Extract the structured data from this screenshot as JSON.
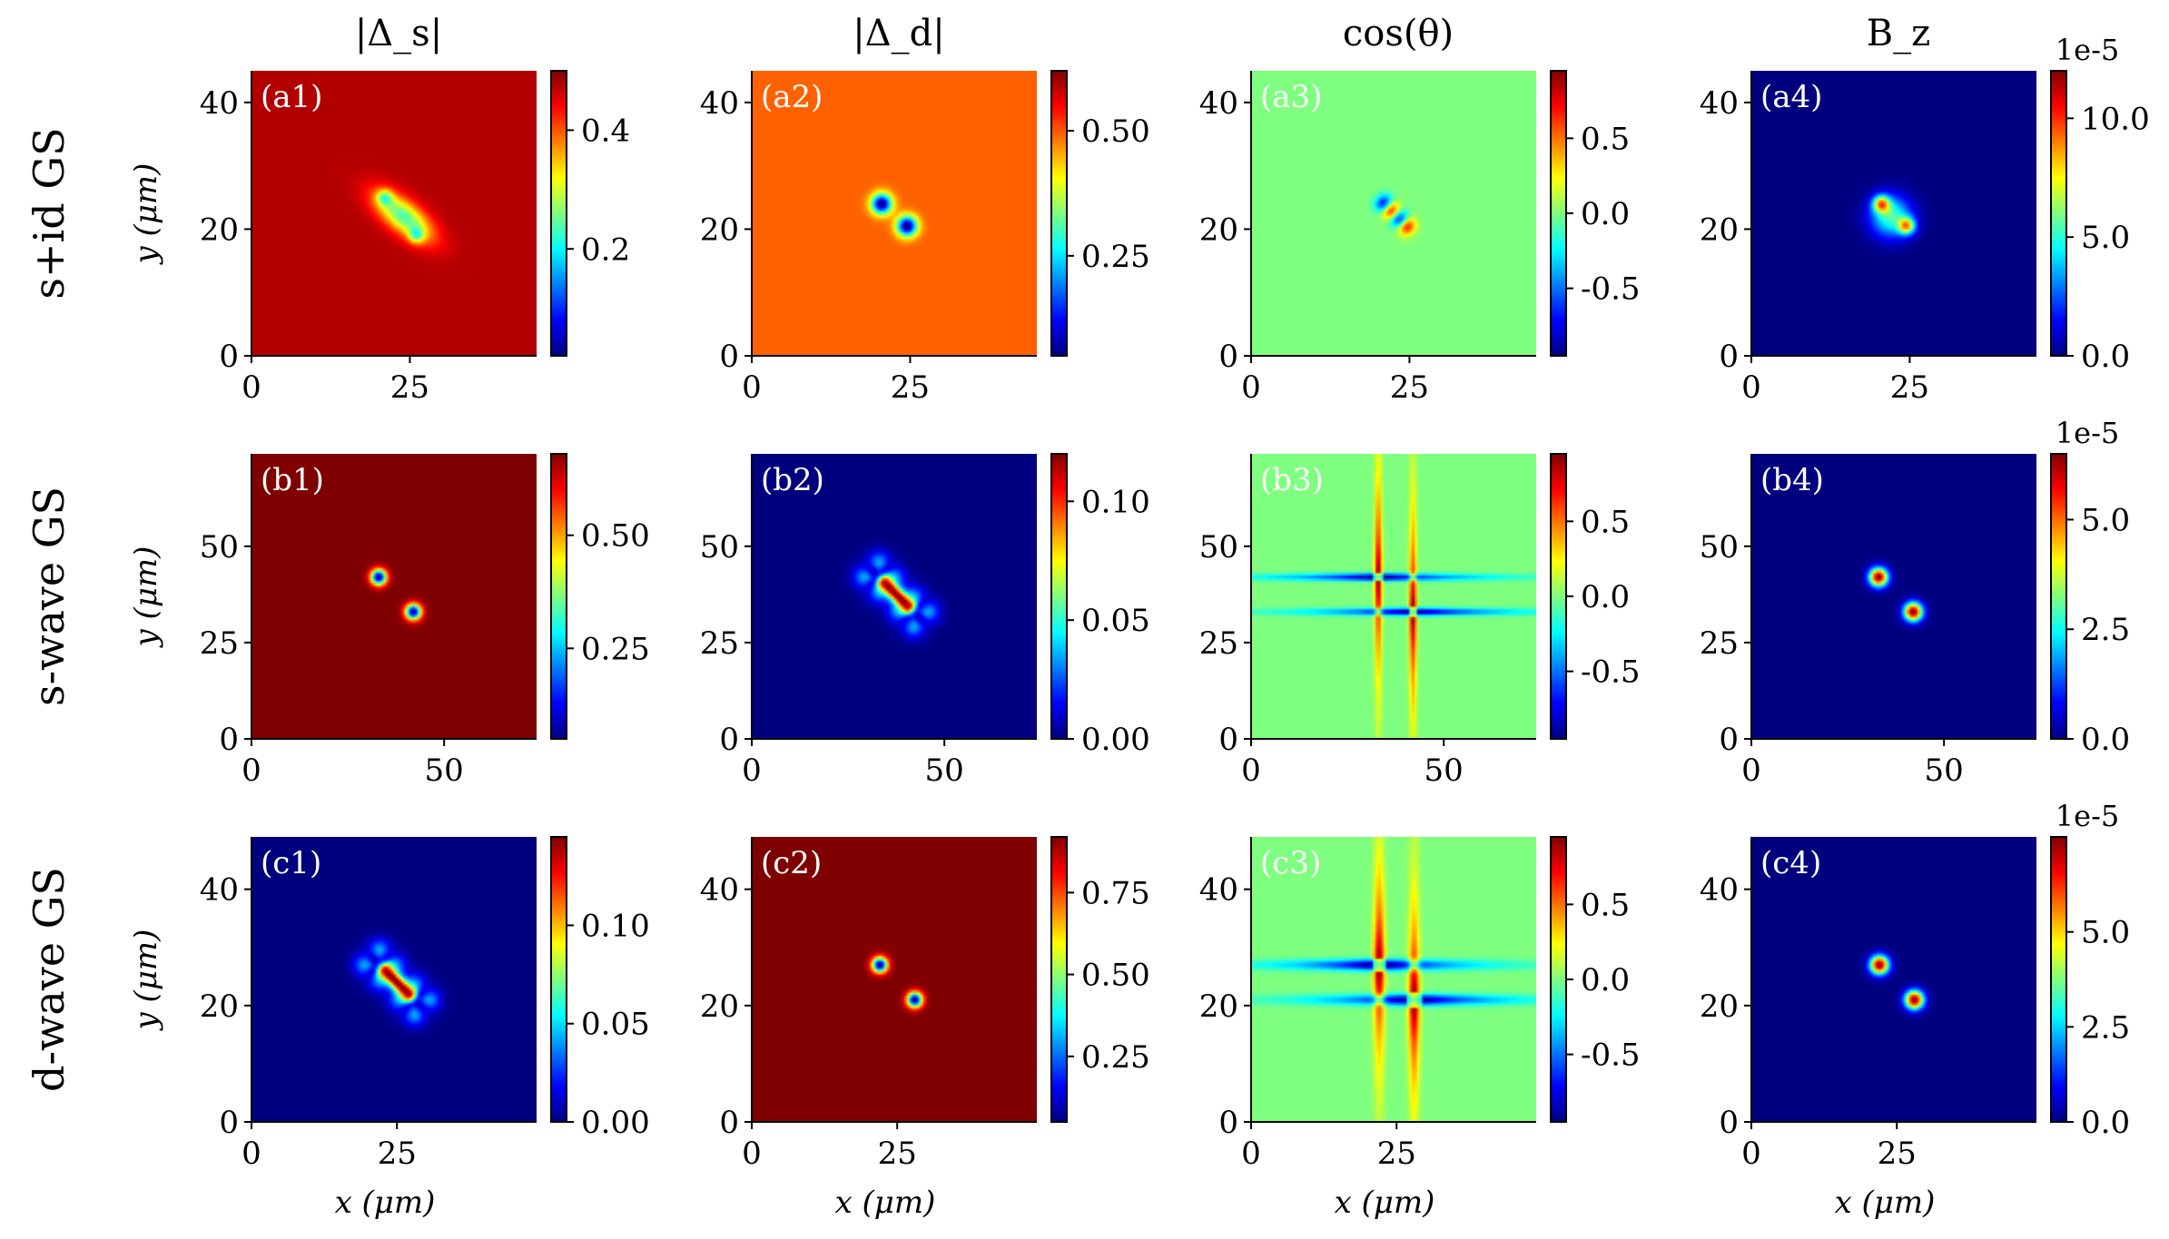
{
  "figure": {
    "column_titles": [
      "|Δ_s|",
      "|Δ_d|",
      "cos(θ)",
      "B_z"
    ],
    "row_titles": [
      "s+id GS",
      "s-wave GS",
      "d-wave GS"
    ],
    "x_label": "x (μm)",
    "y_label": "y (μm)",
    "colormap": [
      "#00007f",
      "#0000ff",
      "#007fff",
      "#00ffff",
      "#7fff7f",
      "#ffff00",
      "#ff7f00",
      "#ff0000",
      "#7f0000"
    ]
  },
  "chart_data": [
    {
      "type": "heatmap",
      "id": "a1",
      "panel_label": "(a1)",
      "row": 0,
      "col": 0,
      "xlim": [
        0,
        45
      ],
      "ylim": [
        0,
        45
      ],
      "x_ticks": [
        0,
        25
      ],
      "y_ticks": [
        0,
        20,
        40
      ],
      "x_tick_labels": [
        "0",
        "25"
      ],
      "y_tick_labels": [
        "0",
        "20",
        "40"
      ],
      "cbar_range": [
        0.02,
        0.5
      ],
      "cbar_ticks": [
        0.2,
        0.4
      ],
      "cbar_tick_labels": [
        "0.2",
        "0.4"
      ],
      "cbar_offset": "",
      "background_level": 0.95,
      "features": [
        {
          "kind": "ring",
          "x": 24,
          "y": 22,
          "sigma": 3.5,
          "amp": -0.5,
          "core": 0.0
        },
        {
          "kind": "spot",
          "x": 21,
          "y": 25,
          "sigma": 1.2,
          "amp": -0.3
        },
        {
          "kind": "spot",
          "x": 26,
          "y": 19,
          "sigma": 1.2,
          "amp": -0.3
        }
      ]
    },
    {
      "type": "heatmap",
      "id": "a2",
      "panel_label": "(a2)",
      "row": 0,
      "col": 1,
      "xlim": [
        0,
        45
      ],
      "ylim": [
        0,
        45
      ],
      "x_ticks": [
        0,
        25
      ],
      "y_ticks": [
        0,
        20,
        40
      ],
      "x_tick_labels": [
        "0",
        "25"
      ],
      "y_tick_labels": [
        "0",
        "20",
        "40"
      ],
      "cbar_range": [
        0.05,
        0.62
      ],
      "cbar_ticks": [
        0.25,
        0.5
      ],
      "cbar_tick_labels": [
        "0.25",
        "0.50"
      ],
      "cbar_offset": "",
      "background_level": 0.78,
      "features": [
        {
          "kind": "vortex",
          "x": 20.5,
          "y": 24,
          "sigma": 1.6
        },
        {
          "kind": "vortex",
          "x": 24.5,
          "y": 20.5,
          "sigma": 1.6
        }
      ]
    },
    {
      "type": "heatmap",
      "id": "a3",
      "panel_label": "(a3)",
      "row": 0,
      "col": 2,
      "xlim": [
        0,
        45
      ],
      "ylim": [
        0,
        45
      ],
      "x_ticks": [
        0,
        25
      ],
      "y_ticks": [
        0,
        20,
        40
      ],
      "x_tick_labels": [
        "0",
        "25"
      ],
      "y_tick_labels": [
        "0",
        "20",
        "40"
      ],
      "cbar_range": [
        -0.95,
        0.95
      ],
      "cbar_ticks": [
        -0.5,
        0.0,
        0.5
      ],
      "cbar_tick_labels": [
        "-0.5",
        "0.0",
        "0.5"
      ],
      "cbar_offset": "",
      "background_level": 0.5,
      "features": [
        {
          "kind": "dipole",
          "x": 21.5,
          "y": 23.5,
          "sigma": 1.4
        },
        {
          "kind": "dipole",
          "x": 24,
          "y": 21,
          "sigma": 1.4
        }
      ]
    },
    {
      "type": "heatmap",
      "id": "a4",
      "panel_label": "(a4)",
      "row": 0,
      "col": 3,
      "xlim": [
        0,
        45
      ],
      "ylim": [
        0,
        45
      ],
      "x_ticks": [
        0,
        25
      ],
      "y_ticks": [
        0,
        20,
        40
      ],
      "x_tick_labels": [
        "0",
        "25"
      ],
      "y_tick_labels": [
        "0",
        "20",
        "40"
      ],
      "cbar_range": [
        0,
        12
      ],
      "cbar_ticks": [
        0,
        5,
        10
      ],
      "cbar_tick_labels": [
        "0.0",
        "5.0",
        "10.0"
      ],
      "cbar_offset": "1e-5",
      "background_level": 0.0,
      "features": [
        {
          "kind": "spot",
          "x": 22,
          "y": 22,
          "sigma": 3.2,
          "amp": 0.45
        },
        {
          "kind": "spot",
          "x": 20.5,
          "y": 24,
          "sigma": 1.3,
          "amp": 0.6
        },
        {
          "kind": "spot",
          "x": 24.5,
          "y": 20.5,
          "sigma": 1.3,
          "amp": 0.6
        }
      ]
    },
    {
      "type": "heatmap",
      "id": "b1",
      "panel_label": "(b1)",
      "row": 1,
      "col": 0,
      "xlim": [
        0,
        74
      ],
      "ylim": [
        0,
        74
      ],
      "x_ticks": [
        0,
        50
      ],
      "y_ticks": [
        0,
        25,
        50
      ],
      "x_tick_labels": [
        "0",
        "50"
      ],
      "y_tick_labels": [
        "0",
        "25",
        "50"
      ],
      "cbar_range": [
        0.05,
        0.68
      ],
      "cbar_ticks": [
        0.25,
        0.5
      ],
      "cbar_tick_labels": [
        "0.25",
        "0.50"
      ],
      "cbar_offset": "",
      "background_level": 1.0,
      "features": [
        {
          "kind": "vortex",
          "x": 33,
          "y": 42,
          "sigma": 2.0
        },
        {
          "kind": "vortex",
          "x": 42,
          "y": 33,
          "sigma": 2.0
        }
      ]
    },
    {
      "type": "heatmap",
      "id": "b2",
      "panel_label": "(b2)",
      "row": 1,
      "col": 1,
      "xlim": [
        0,
        74
      ],
      "ylim": [
        0,
        74
      ],
      "x_ticks": [
        0,
        50
      ],
      "y_ticks": [
        0,
        25,
        50
      ],
      "x_tick_labels": [
        "0",
        "50"
      ],
      "y_tick_labels": [
        "0",
        "25",
        "50"
      ],
      "cbar_range": [
        0,
        0.12
      ],
      "cbar_ticks": [
        0,
        0.05,
        0.1
      ],
      "cbar_tick_labels": [
        "0.00",
        "0.05",
        "0.10"
      ],
      "cbar_offset": "",
      "background_level": 0.0,
      "features": [
        {
          "kind": "clover",
          "x": 33,
          "y": 42,
          "sigma": 4.5
        },
        {
          "kind": "clover",
          "x": 42,
          "y": 33,
          "sigma": 4.5
        },
        {
          "kind": "bridge",
          "x1": 33,
          "y1": 42,
          "x2": 42,
          "y2": 33,
          "sigma": 1.8,
          "amp": 0.9
        }
      ]
    },
    {
      "type": "heatmap",
      "id": "b3",
      "panel_label": "(b3)",
      "row": 1,
      "col": 2,
      "xlim": [
        0,
        74
      ],
      "ylim": [
        0,
        74
      ],
      "x_ticks": [
        0,
        50
      ],
      "y_ticks": [
        0,
        25,
        50
      ],
      "x_tick_labels": [
        "0",
        "50"
      ],
      "y_tick_labels": [
        "0",
        "25",
        "50"
      ],
      "cbar_range": [
        -0.95,
        0.95
      ],
      "cbar_ticks": [
        -0.5,
        0.0,
        0.5
      ],
      "cbar_tick_labels": [
        "-0.5",
        "0.0",
        "0.5"
      ],
      "cbar_offset": "",
      "background_level": 0.5,
      "features": [
        {
          "kind": "cross",
          "x": 33,
          "y": 42,
          "arm": 24
        },
        {
          "kind": "cross",
          "x": 42,
          "y": 33,
          "arm": 24
        }
      ]
    },
    {
      "type": "heatmap",
      "id": "b4",
      "panel_label": "(b4)",
      "row": 1,
      "col": 3,
      "xlim": [
        0,
        74
      ],
      "ylim": [
        0,
        74
      ],
      "x_ticks": [
        0,
        50
      ],
      "y_ticks": [
        0,
        25,
        50
      ],
      "x_tick_labels": [
        "0",
        "50"
      ],
      "y_tick_labels": [
        "0",
        "25",
        "50"
      ],
      "cbar_range": [
        0,
        6.5
      ],
      "cbar_ticks": [
        0,
        2.5,
        5
      ],
      "cbar_tick_labels": [
        "0.0",
        "2.5",
        "5.0"
      ],
      "cbar_offset": "1e-5",
      "background_level": 0.0,
      "features": [
        {
          "kind": "spot",
          "x": 33,
          "y": 42,
          "sigma": 2.4,
          "amp": 1.0
        },
        {
          "kind": "spot",
          "x": 42,
          "y": 33,
          "sigma": 2.4,
          "amp": 1.0
        }
      ]
    },
    {
      "type": "heatmap",
      "id": "c1",
      "panel_label": "(c1)",
      "row": 2,
      "col": 0,
      "xlim": [
        0,
        49
      ],
      "ylim": [
        0,
        49
      ],
      "x_ticks": [
        0,
        25
      ],
      "y_ticks": [
        0,
        20,
        40
      ],
      "x_tick_labels": [
        "0",
        "25"
      ],
      "y_tick_labels": [
        "0",
        "20",
        "40"
      ],
      "cbar_range": [
        0,
        0.145
      ],
      "cbar_ticks": [
        0,
        0.05,
        0.1
      ],
      "cbar_tick_labels": [
        "0.00",
        "0.05",
        "0.10"
      ],
      "cbar_offset": "",
      "background_level": 0.0,
      "features": [
        {
          "kind": "clover",
          "x": 22,
          "y": 27,
          "sigma": 3.0
        },
        {
          "kind": "clover",
          "x": 28,
          "y": 21,
          "sigma": 3.0
        },
        {
          "kind": "bridge",
          "x1": 22,
          "y1": 27,
          "x2": 28,
          "y2": 21,
          "sigma": 1.2,
          "amp": 0.9
        }
      ]
    },
    {
      "type": "heatmap",
      "id": "c2",
      "panel_label": "(c2)",
      "row": 2,
      "col": 1,
      "xlim": [
        0,
        49
      ],
      "ylim": [
        0,
        49
      ],
      "x_ticks": [
        0,
        25
      ],
      "y_ticks": [
        0,
        20,
        40
      ],
      "x_tick_labels": [
        "0",
        "25"
      ],
      "y_tick_labels": [
        "0",
        "20",
        "40"
      ],
      "cbar_range": [
        0.05,
        0.92
      ],
      "cbar_ticks": [
        0.25,
        0.5,
        0.75
      ],
      "cbar_tick_labels": [
        "0.25",
        "0.50",
        "0.75"
      ],
      "cbar_offset": "",
      "background_level": 1.0,
      "features": [
        {
          "kind": "vortex",
          "x": 22,
          "y": 27,
          "sigma": 1.3
        },
        {
          "kind": "vortex",
          "x": 28,
          "y": 21,
          "sigma": 1.3
        }
      ]
    },
    {
      "type": "heatmap",
      "id": "c3",
      "panel_label": "(c3)",
      "row": 2,
      "col": 2,
      "xlim": [
        0,
        49
      ],
      "ylim": [
        0,
        49
      ],
      "x_ticks": [
        0,
        25
      ],
      "y_ticks": [
        0,
        20,
        40
      ],
      "x_tick_labels": [
        "0",
        "25"
      ],
      "y_tick_labels": [
        "0",
        "20",
        "40"
      ],
      "cbar_range": [
        -0.95,
        0.95
      ],
      "cbar_ticks": [
        -0.5,
        0.0,
        0.5
      ],
      "cbar_tick_labels": [
        "-0.5",
        "0.0",
        "0.5"
      ],
      "cbar_offset": "",
      "background_level": 0.5,
      "features": [
        {
          "kind": "cross",
          "x": 22,
          "y": 27,
          "arm": 15
        },
        {
          "kind": "cross",
          "x": 28,
          "y": 21,
          "arm": 15
        }
      ]
    },
    {
      "type": "heatmap",
      "id": "c4",
      "panel_label": "(c4)",
      "row": 2,
      "col": 3,
      "xlim": [
        0,
        49
      ],
      "ylim": [
        0,
        49
      ],
      "x_ticks": [
        0,
        25
      ],
      "y_ticks": [
        0,
        20,
        40
      ],
      "x_tick_labels": [
        "0",
        "25"
      ],
      "y_tick_labels": [
        "0",
        "20",
        "40"
      ],
      "cbar_range": [
        0,
        7.5
      ],
      "cbar_ticks": [
        0,
        2.5,
        5
      ],
      "cbar_tick_labels": [
        "0.0",
        "2.5",
        "5.0"
      ],
      "cbar_offset": "1e-5",
      "background_level": 0.0,
      "features": [
        {
          "kind": "spot",
          "x": 22,
          "y": 27,
          "sigma": 1.6,
          "amp": 1.0
        },
        {
          "kind": "spot",
          "x": 28,
          "y": 21,
          "sigma": 1.6,
          "amp": 1.0
        }
      ]
    }
  ]
}
